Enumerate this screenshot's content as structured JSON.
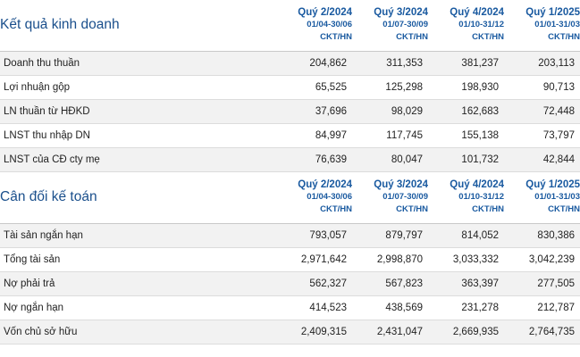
{
  "business": {
    "title": "Kết quả kinh doanh",
    "columns": [
      {
        "quarter": "Quý 2/2024",
        "range": "01/04-30/06",
        "unit": "CKT/HN"
      },
      {
        "quarter": "Quý 3/2024",
        "range": "01/07-30/09",
        "unit": "CKT/HN"
      },
      {
        "quarter": "Quý 4/2024",
        "range": "01/10-31/12",
        "unit": "CKT/HN"
      },
      {
        "quarter": "Quý 1/2025",
        "range": "01/01-31/03",
        "unit": "CKT/HN"
      }
    ],
    "rows": [
      {
        "label": "Doanh thu thuần",
        "values": [
          "204,862",
          "311,353",
          "381,237",
          "203,113"
        ]
      },
      {
        "label": "Lợi nhuận gộp",
        "values": [
          "65,525",
          "125,298",
          "198,930",
          "90,713"
        ]
      },
      {
        "label": "LN thuần từ HĐKD",
        "values": [
          "37,696",
          "98,029",
          "162,683",
          "72,448"
        ]
      },
      {
        "label": "LNST thu nhập DN",
        "values": [
          "84,997",
          "117,745",
          "155,138",
          "73,797"
        ]
      },
      {
        "label": "LNST của CĐ cty mẹ",
        "values": [
          "76,639",
          "80,047",
          "101,732",
          "42,844"
        ]
      }
    ]
  },
  "balance": {
    "title": "Cân đối kế toán",
    "columns": [
      {
        "quarter": "Quý 2/2024",
        "range": "01/04-30/06",
        "unit": "CKT/HN"
      },
      {
        "quarter": "Quý 3/2024",
        "range": "01/07-30/09",
        "unit": "CKT/HN"
      },
      {
        "quarter": "Quý 4/2024",
        "range": "01/10-31/12",
        "unit": "CKT/HN"
      },
      {
        "quarter": "Quý 1/2025",
        "range": "01/01-31/03",
        "unit": "CKT/HN"
      }
    ],
    "rows": [
      {
        "label": "Tài sản ngắn hạn",
        "values": [
          "793,057",
          "879,797",
          "814,052",
          "830,386"
        ]
      },
      {
        "label": "Tổng tài sản",
        "values": [
          "2,971,642",
          "2,998,870",
          "3,033,332",
          "3,042,239"
        ]
      },
      {
        "label": "Nợ phải trả",
        "values": [
          "562,327",
          "567,823",
          "363,397",
          "277,505"
        ]
      },
      {
        "label": "Nợ ngắn hạn",
        "values": [
          "414,523",
          "438,569",
          "231,278",
          "212,787"
        ]
      },
      {
        "label": "Vốn chủ sở hữu",
        "values": [
          "2,409,315",
          "2,431,047",
          "2,669,935",
          "2,764,735"
        ]
      }
    ]
  }
}
